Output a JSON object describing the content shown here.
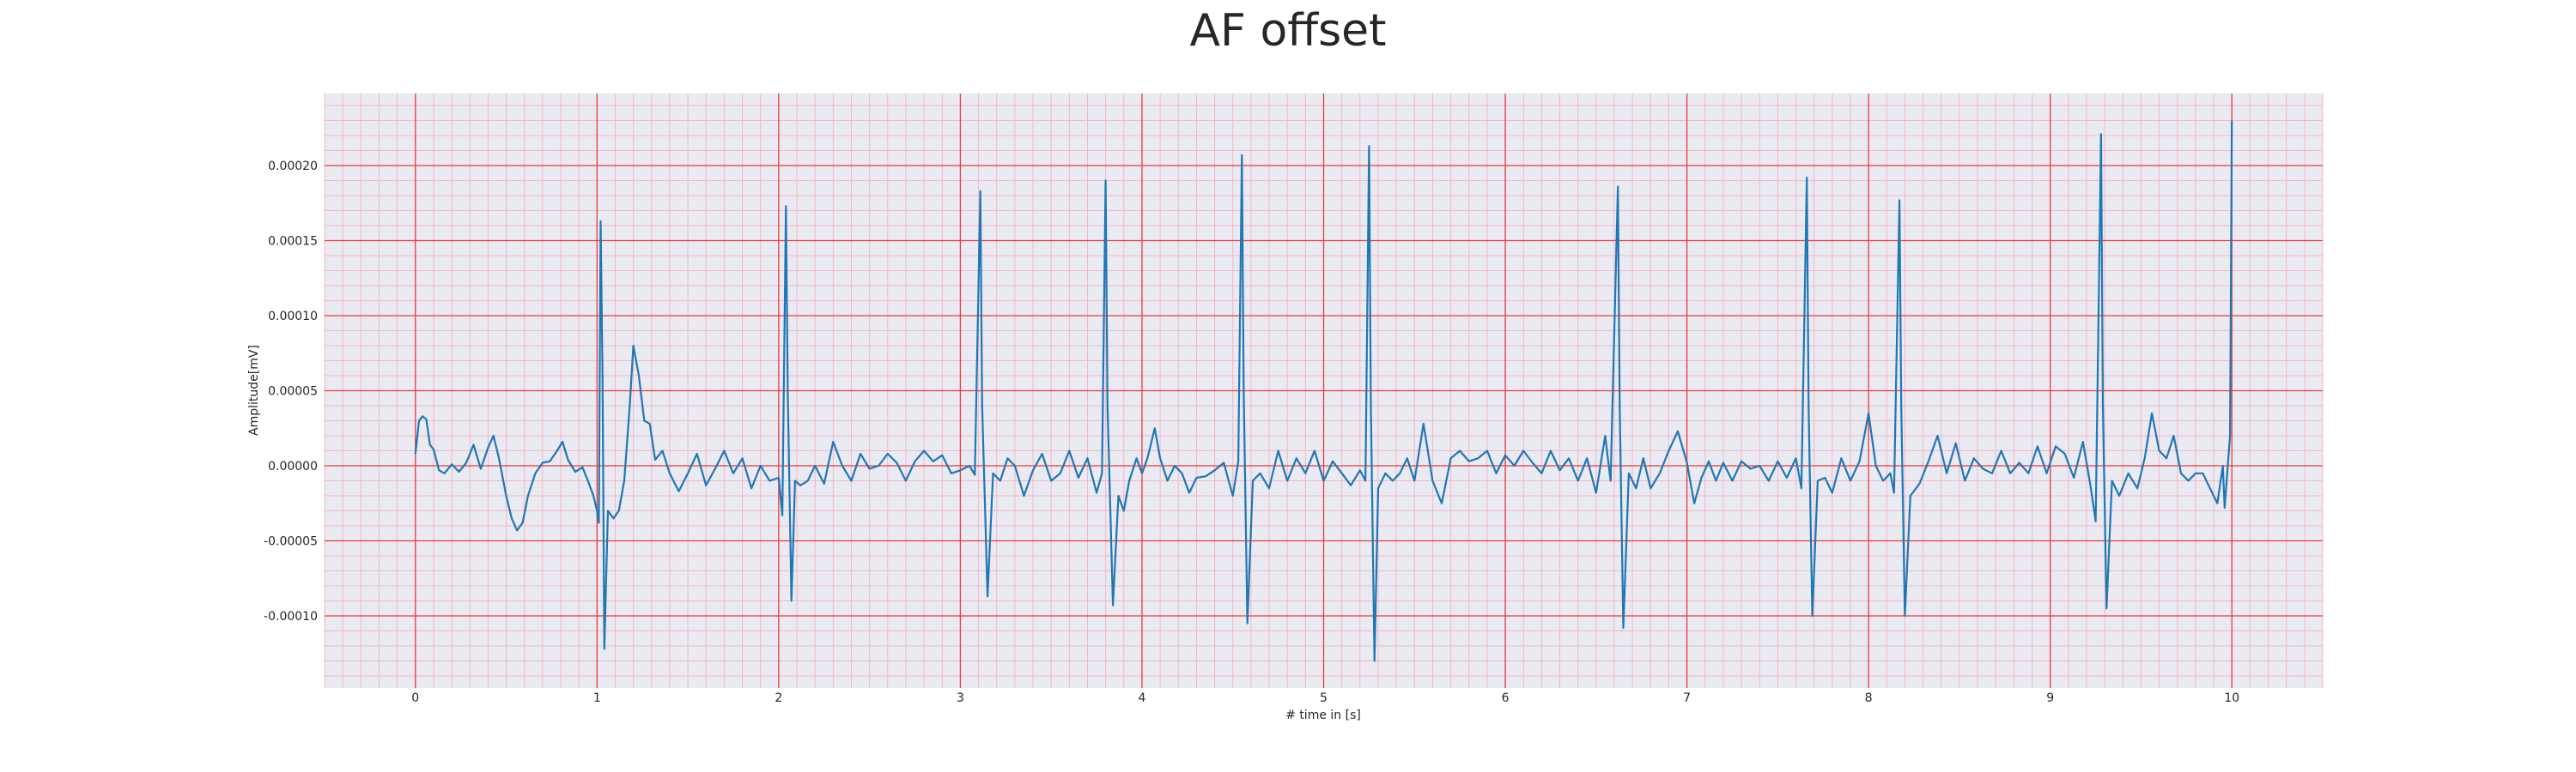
{
  "chart_data": {
    "type": "line",
    "title": "AF offset",
    "xlabel": "# time in [s]",
    "ylabel": "Amplitude[mV]",
    "xlim": [
      -0.5,
      10.5
    ],
    "ylim": [
      -0.000148,
      0.000248
    ],
    "x_ticks": [
      0,
      1,
      2,
      3,
      4,
      5,
      6,
      7,
      8,
      9,
      10
    ],
    "y_ticks": [
      -0.0001,
      -5e-05,
      0.0,
      5e-05,
      0.0001,
      0.00015,
      0.0002
    ],
    "y_tick_labels": [
      "-0.00010",
      "-0.00005",
      "0.00000",
      "0.00005",
      "0.00010",
      "0.00015",
      "0.00020"
    ],
    "grid": true,
    "minor_grid": true,
    "series": [
      {
        "color": "#1f77b4",
        "points": [
          [
            0.0,
            8e-06
          ],
          [
            0.02,
            3e-05
          ],
          [
            0.04,
            3.3e-05
          ],
          [
            0.06,
            3.1e-05
          ],
          [
            0.08,
            1.4e-05
          ],
          [
            0.1,
            1.1e-05
          ],
          [
            0.13,
            -3e-06
          ],
          [
            0.16,
            -5e-06
          ],
          [
            0.2,
            1e-06
          ],
          [
            0.24,
            -4e-06
          ],
          [
            0.28,
            2e-06
          ],
          [
            0.32,
            1.4e-05
          ],
          [
            0.36,
            -2e-06
          ],
          [
            0.4,
            1.2e-05
          ],
          [
            0.43,
            2e-05
          ],
          [
            0.46,
            5e-06
          ],
          [
            0.5,
            -2e-05
          ],
          [
            0.53,
            -3.5e-05
          ],
          [
            0.56,
            -4.3e-05
          ],
          [
            0.59,
            -3.8e-05
          ],
          [
            0.62,
            -2e-05
          ],
          [
            0.66,
            -5e-06
          ],
          [
            0.7,
            2e-06
          ],
          [
            0.74,
            3e-06
          ],
          [
            0.78,
            1e-05
          ],
          [
            0.81,
            1.6e-05
          ],
          [
            0.84,
            4e-06
          ],
          [
            0.88,
            -4e-06
          ],
          [
            0.92,
            -1e-06
          ],
          [
            0.95,
            -1e-05
          ],
          [
            0.98,
            -2e-05
          ],
          [
            1.0,
            -3e-05
          ],
          [
            1.01,
            -3.8e-05
          ],
          [
            1.02,
            0.000163
          ],
          [
            1.03,
            6e-05
          ],
          [
            1.04,
            -0.000122
          ],
          [
            1.06,
            -3e-05
          ],
          [
            1.09,
            -3.5e-05
          ],
          [
            1.12,
            -3e-05
          ],
          [
            1.15,
            -1e-05
          ],
          [
            1.18,
            4e-05
          ],
          [
            1.2,
            8e-05
          ],
          [
            1.23,
            6e-05
          ],
          [
            1.26,
            3e-05
          ],
          [
            1.29,
            2.8e-05
          ],
          [
            1.32,
            4e-06
          ],
          [
            1.36,
            1e-05
          ],
          [
            1.4,
            -5e-06
          ],
          [
            1.45,
            -1.7e-05
          ],
          [
            1.5,
            -5e-06
          ],
          [
            1.55,
            8e-06
          ],
          [
            1.6,
            -1.3e-05
          ],
          [
            1.65,
            -2e-06
          ],
          [
            1.7,
            1e-05
          ],
          [
            1.75,
            -5e-06
          ],
          [
            1.8,
            5e-06
          ],
          [
            1.85,
            -1.5e-05
          ],
          [
            1.9,
            0.0
          ],
          [
            1.95,
            -1e-05
          ],
          [
            2.0,
            -8e-06
          ],
          [
            2.02,
            -3.3e-05
          ],
          [
            2.04,
            0.000173
          ],
          [
            2.05,
            5e-05
          ],
          [
            2.07,
            -9e-05
          ],
          [
            2.09,
            -1e-05
          ],
          [
            2.12,
            -1.3e-05
          ],
          [
            2.16,
            -1e-05
          ],
          [
            2.2,
            0.0
          ],
          [
            2.25,
            -1.2e-05
          ],
          [
            2.3,
            1.6e-05
          ],
          [
            2.35,
            0.0
          ],
          [
            2.4,
            -1e-05
          ],
          [
            2.45,
            8e-06
          ],
          [
            2.5,
            -2e-06
          ],
          [
            2.55,
            0.0
          ],
          [
            2.6,
            8e-06
          ],
          [
            2.65,
            2e-06
          ],
          [
            2.7,
            -1e-05
          ],
          [
            2.75,
            3e-06
          ],
          [
            2.8,
            1e-05
          ],
          [
            2.85,
            3e-06
          ],
          [
            2.9,
            7e-06
          ],
          [
            2.95,
            -5e-06
          ],
          [
            3.0,
            -3e-06
          ],
          [
            3.05,
            0.0
          ],
          [
            3.08,
            -6e-06
          ],
          [
            3.11,
            0.000183
          ],
          [
            3.12,
            4e-05
          ],
          [
            3.15,
            -8.7e-05
          ],
          [
            3.18,
            -5e-06
          ],
          [
            3.22,
            -1e-05
          ],
          [
            3.26,
            5e-06
          ],
          [
            3.3,
            0.0
          ],
          [
            3.35,
            -2e-05
          ],
          [
            3.4,
            -3e-06
          ],
          [
            3.45,
            8e-06
          ],
          [
            3.5,
            -1e-05
          ],
          [
            3.55,
            -5e-06
          ],
          [
            3.6,
            1e-05
          ],
          [
            3.65,
            -8e-06
          ],
          [
            3.7,
            5e-06
          ],
          [
            3.75,
            -1.8e-05
          ],
          [
            3.78,
            -5e-06
          ],
          [
            3.8,
            0.00019
          ],
          [
            3.81,
            4e-05
          ],
          [
            3.84,
            -9.3e-05
          ],
          [
            3.87,
            -2e-05
          ],
          [
            3.9,
            -3e-05
          ],
          [
            3.93,
            -1e-05
          ],
          [
            3.97,
            5e-06
          ],
          [
            4.0,
            -5e-06
          ],
          [
            4.03,
            5e-06
          ],
          [
            4.07,
            2.5e-05
          ],
          [
            4.1,
            5e-06
          ],
          [
            4.14,
            -1e-05
          ],
          [
            4.18,
            0.0
          ],
          [
            4.22,
            -5e-06
          ],
          [
            4.26,
            -1.8e-05
          ],
          [
            4.3,
            -8e-06
          ],
          [
            4.35,
            -7e-06
          ],
          [
            4.4,
            -3e-06
          ],
          [
            4.45,
            2e-06
          ],
          [
            4.5,
            -2e-05
          ],
          [
            4.53,
            3e-06
          ],
          [
            4.55,
            0.000207
          ],
          [
            4.56,
            5e-05
          ],
          [
            4.58,
            -0.000105
          ],
          [
            4.61,
            -1e-05
          ],
          [
            4.65,
            -5e-06
          ],
          [
            4.7,
            -1.5e-05
          ],
          [
            4.75,
            1e-05
          ],
          [
            4.8,
            -1e-05
          ],
          [
            4.85,
            5e-06
          ],
          [
            4.9,
            -5e-06
          ],
          [
            4.95,
            1e-05
          ],
          [
            5.0,
            -1e-05
          ],
          [
            5.05,
            3e-06
          ],
          [
            5.1,
            -5e-06
          ],
          [
            5.15,
            -1.3e-05
          ],
          [
            5.2,
            -3e-06
          ],
          [
            5.23,
            -1e-05
          ],
          [
            5.25,
            0.000213
          ],
          [
            5.26,
            4e-05
          ],
          [
            5.28,
            -0.00013
          ],
          [
            5.3,
            -1.5e-05
          ],
          [
            5.34,
            -5e-06
          ],
          [
            5.38,
            -1e-05
          ],
          [
            5.42,
            -5e-06
          ],
          [
            5.46,
            5e-06
          ],
          [
            5.5,
            -1e-05
          ],
          [
            5.55,
            2.8e-05
          ],
          [
            5.6,
            -1e-05
          ],
          [
            5.65,
            -2.5e-05
          ],
          [
            5.7,
            5e-06
          ],
          [
            5.75,
            1e-05
          ],
          [
            5.8,
            3e-06
          ],
          [
            5.85,
            5e-06
          ],
          [
            5.9,
            1e-05
          ],
          [
            5.95,
            -5e-06
          ],
          [
            6.0,
            7e-06
          ],
          [
            6.05,
            0.0
          ],
          [
            6.1,
            1e-05
          ],
          [
            6.15,
            2e-06
          ],
          [
            6.2,
            -5e-06
          ],
          [
            6.25,
            1e-05
          ],
          [
            6.3,
            -3e-06
          ],
          [
            6.35,
            5e-06
          ],
          [
            6.4,
            -1e-05
          ],
          [
            6.45,
            5e-06
          ],
          [
            6.5,
            -1.8e-05
          ],
          [
            6.55,
            2e-05
          ],
          [
            6.58,
            -1e-05
          ],
          [
            6.62,
            0.000186
          ],
          [
            6.63,
            4e-05
          ],
          [
            6.65,
            -0.000108
          ],
          [
            6.68,
            -5e-06
          ],
          [
            6.72,
            -1.5e-05
          ],
          [
            6.76,
            5e-06
          ],
          [
            6.8,
            -1.5e-05
          ],
          [
            6.85,
            -5e-06
          ],
          [
            6.9,
            1e-05
          ],
          [
            6.95,
            2.3e-05
          ],
          [
            7.0,
            2e-06
          ],
          [
            7.04,
            -2.5e-05
          ],
          [
            7.08,
            -8e-06
          ],
          [
            7.12,
            3e-06
          ],
          [
            7.16,
            -1e-05
          ],
          [
            7.2,
            2e-06
          ],
          [
            7.25,
            -1e-05
          ],
          [
            7.3,
            3e-06
          ],
          [
            7.35,
            -2e-06
          ],
          [
            7.4,
            0.0
          ],
          [
            7.45,
            -1e-05
          ],
          [
            7.5,
            3e-06
          ],
          [
            7.55,
            -8e-06
          ],
          [
            7.6,
            5e-06
          ],
          [
            7.63,
            -1.5e-05
          ],
          [
            7.66,
            0.000192
          ],
          [
            7.67,
            4e-05
          ],
          [
            7.69,
            -0.0001
          ],
          [
            7.72,
            -1e-05
          ],
          [
            7.76,
            -8e-06
          ],
          [
            7.8,
            -1.8e-05
          ],
          [
            7.85,
            5e-06
          ],
          [
            7.9,
            -1e-05
          ],
          [
            7.95,
            3e-06
          ],
          [
            8.0,
            3.5e-05
          ],
          [
            8.04,
            0.0
          ],
          [
            8.08,
            -1e-05
          ],
          [
            8.12,
            -5e-06
          ],
          [
            8.14,
            -1.8e-05
          ],
          [
            8.17,
            0.000177
          ],
          [
            8.18,
            4e-05
          ],
          [
            8.2,
            -0.0001
          ],
          [
            8.23,
            -2e-05
          ],
          [
            8.28,
            -1.2e-05
          ],
          [
            8.33,
            3e-06
          ],
          [
            8.38,
            2e-05
          ],
          [
            8.43,
            -5e-06
          ],
          [
            8.48,
            1.5e-05
          ],
          [
            8.53,
            -1e-05
          ],
          [
            8.58,
            5e-06
          ],
          [
            8.63,
            -2e-06
          ],
          [
            8.68,
            -5e-06
          ],
          [
            8.73,
            1e-05
          ],
          [
            8.78,
            -5e-06
          ],
          [
            8.83,
            2e-06
          ],
          [
            8.88,
            -5e-06
          ],
          [
            8.93,
            1.3e-05
          ],
          [
            8.98,
            -5e-06
          ],
          [
            9.03,
            1.3e-05
          ],
          [
            9.08,
            8e-06
          ],
          [
            9.13,
            -8e-06
          ],
          [
            9.18,
            1.6e-05
          ],
          [
            9.22,
            -1.2e-05
          ],
          [
            9.25,
            -3.7e-05
          ],
          [
            9.28,
            0.000221
          ],
          [
            9.29,
            4e-05
          ],
          [
            9.31,
            -9.5e-05
          ],
          [
            9.34,
            -1e-05
          ],
          [
            9.38,
            -2e-05
          ],
          [
            9.43,
            -5e-06
          ],
          [
            9.48,
            -1.5e-05
          ],
          [
            9.52,
            5e-06
          ],
          [
            9.56,
            3.5e-05
          ],
          [
            9.6,
            1e-05
          ],
          [
            9.64,
            5e-06
          ],
          [
            9.68,
            2e-05
          ],
          [
            9.72,
            -5e-06
          ],
          [
            9.76,
            -1e-05
          ],
          [
            9.8,
            -5e-06
          ],
          [
            9.84,
            -5e-06
          ],
          [
            9.88,
            -1.5e-05
          ],
          [
            9.92,
            -2.5e-05
          ],
          [
            9.95,
            0.0
          ],
          [
            9.96,
            -2.8e-05
          ],
          [
            9.99,
            2e-05
          ],
          [
            10.0,
            0.00023
          ]
        ]
      }
    ]
  }
}
